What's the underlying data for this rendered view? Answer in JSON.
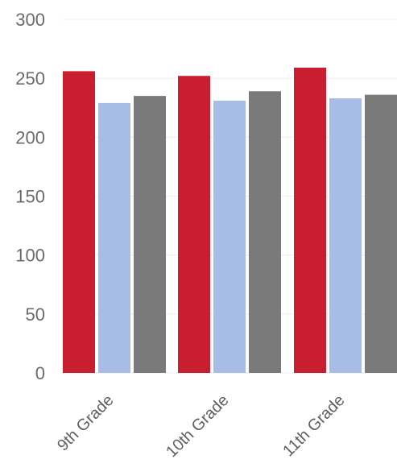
{
  "chart_data": {
    "type": "bar",
    "categories": [
      "9th Grade",
      "10th Grade",
      "11th Grade"
    ],
    "series": [
      {
        "values": [
          256,
          252,
          259
        ],
        "color": "#c81e2f"
      },
      {
        "values": [
          229,
          231,
          233
        ],
        "color": "#a7bde6"
      },
      {
        "values": [
          235,
          239,
          236
        ],
        "color": "#7a7a7a"
      }
    ],
    "ylim": [
      0,
      300
    ],
    "yticks": [
      "0",
      "50",
      "100",
      "150",
      "200",
      "250",
      "300"
    ],
    "grid": true,
    "legend": "none"
  }
}
